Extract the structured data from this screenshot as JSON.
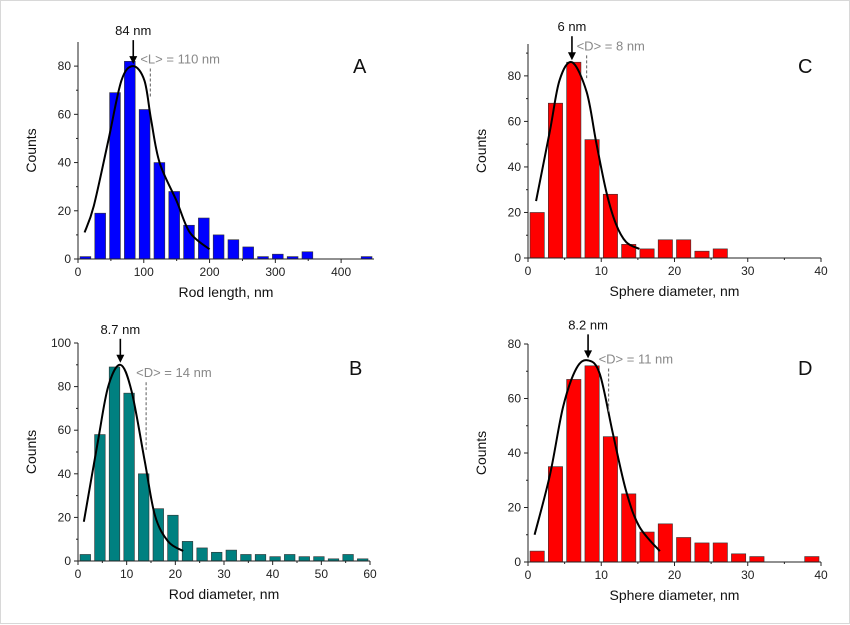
{
  "chart_data": [
    {
      "type": "bar",
      "panel": "A",
      "title": "",
      "xlabel": "Rod length, nm",
      "ylabel": "Counts",
      "xlim": [
        0,
        450
      ],
      "ylim": [
        0,
        90
      ],
      "xticks": [
        0,
        100,
        200,
        300,
        400
      ],
      "yticks": [
        0,
        20,
        40,
        60,
        80
      ],
      "grid": false,
      "bar_color": "#0000ff",
      "bin_width": 22.5,
      "x": [
        11.25,
        33.75,
        56.25,
        78.75,
        101.25,
        123.75,
        146.25,
        168.75,
        191.25,
        213.75,
        236.25,
        258.75,
        281.25,
        303.75,
        326.25,
        348.75,
        438.75
      ],
      "values": [
        1,
        19,
        69,
        82,
        62,
        40,
        28,
        14,
        17,
        10,
        8,
        5,
        1,
        2,
        1,
        3,
        1
      ],
      "fit": [
        [
          10,
          11
        ],
        [
          24,
          22
        ],
        [
          46,
          49
        ],
        [
          66,
          74
        ],
        [
          84,
          80
        ],
        [
          101,
          74
        ],
        [
          111,
          58
        ],
        [
          124,
          40
        ],
        [
          150,
          24
        ],
        [
          170,
          11
        ],
        [
          200,
          4
        ]
      ],
      "peak": {
        "label": "84 nm",
        "x": 84,
        "y": 80
      },
      "mean": {
        "label": "<L> = 110 nm",
        "x": 110,
        "y_top": 79,
        "y_bottom": 67
      },
      "panel_label": "A"
    },
    {
      "type": "bar",
      "panel": "B",
      "title": "",
      "xlabel": "Rod diameter, nm",
      "ylabel": "Counts",
      "xlim": [
        0,
        60
      ],
      "ylim": [
        0,
        100
      ],
      "xticks": [
        0,
        10,
        20,
        30,
        40,
        50,
        60
      ],
      "yticks": [
        0,
        20,
        40,
        60,
        80,
        100
      ],
      "grid": false,
      "bar_color": "#008080",
      "bin_width": 3,
      "x": [
        1.5,
        4.5,
        7.5,
        10.5,
        13.5,
        16.5,
        19.5,
        22.5,
        25.5,
        28.5,
        31.5,
        34.5,
        37.5,
        40.5,
        43.5,
        46.5,
        49.5,
        52.5,
        55.5,
        58.5
      ],
      "values": [
        3,
        58,
        89,
        77,
        40,
        24,
        21,
        9,
        6,
        4,
        5,
        3,
        3,
        2,
        3,
        2,
        2,
        1,
        3,
        1
      ],
      "fit": [
        [
          1.2,
          18
        ],
        [
          4.1,
          55
        ],
        [
          6.2,
          80
        ],
        [
          8.7,
          90
        ],
        [
          11,
          78
        ],
        [
          13.7,
          46
        ],
        [
          15.8,
          21
        ],
        [
          18.5,
          9
        ],
        [
          21.6,
          4.6
        ]
      ],
      "peak": {
        "label": "8.7 nm",
        "x": 8.7,
        "y": 90
      },
      "mean": {
        "label": "<D> = 14 nm",
        "x": 14,
        "y_top": 82,
        "y_bottom": 51
      },
      "panel_label": "B"
    },
    {
      "type": "bar",
      "panel": "C",
      "title": "",
      "xlabel": "Sphere diameter, nm",
      "ylabel": "Counts",
      "xlim": [
        0,
        40
      ],
      "ylim": [
        0,
        94
      ],
      "xticks": [
        0,
        10,
        20,
        30,
        40
      ],
      "yticks": [
        0,
        20,
        40,
        60,
        80
      ],
      "grid": false,
      "bar_color": "#ff0000",
      "bin_width": 2.5,
      "x": [
        1.25,
        3.75,
        6.25,
        8.75,
        11.25,
        13.75,
        16.25,
        18.75,
        21.25,
        23.75,
        26.25
      ],
      "values": [
        20,
        68,
        86,
        52,
        28,
        6,
        4,
        8,
        8,
        3,
        4
      ],
      "fit": [
        [
          1.1,
          25
        ],
        [
          3,
          56
        ],
        [
          4.3,
          78
        ],
        [
          6,
          86
        ],
        [
          8,
          73
        ],
        [
          9.3,
          51
        ],
        [
          10.7,
          29
        ],
        [
          12,
          15
        ],
        [
          13.4,
          7
        ],
        [
          15.2,
          4
        ]
      ],
      "peak": {
        "label": "6 nm",
        "x": 6,
        "y": 86
      },
      "mean": {
        "label": "<D> = 8 nm",
        "x": 8,
        "y_top": 89,
        "y_bottom": 79
      },
      "panel_label": "C"
    },
    {
      "type": "bar",
      "panel": "D",
      "title": "",
      "xlabel": "Sphere diameter, nm",
      "ylabel": "Counts",
      "xlim": [
        0,
        40
      ],
      "ylim": [
        0,
        80
      ],
      "xticks": [
        0,
        10,
        20,
        30,
        40
      ],
      "yticks": [
        0,
        20,
        40,
        60,
        80
      ],
      "grid": false,
      "bar_color": "#ff0000",
      "bin_width": 2.5,
      "x": [
        1.25,
        3.75,
        6.25,
        8.75,
        11.25,
        13.75,
        16.25,
        18.75,
        21.25,
        23.75,
        26.25,
        28.75,
        31.25,
        38.75
      ],
      "values": [
        4,
        35,
        67,
        72,
        46,
        25,
        11,
        14,
        9,
        7,
        7,
        3,
        2,
        2
      ],
      "fit": [
        [
          0.9,
          10
        ],
        [
          3,
          32
        ],
        [
          4.8,
          57
        ],
        [
          6.6,
          71
        ],
        [
          8.2,
          74
        ],
        [
          9.8,
          69
        ],
        [
          11.6,
          47
        ],
        [
          13.4,
          26
        ],
        [
          15.2,
          13
        ],
        [
          18,
          4
        ]
      ],
      "peak": {
        "label": "8.2 nm",
        "x": 8.2,
        "y": 74
      },
      "mean": {
        "label": "<D> = 11 nm",
        "x": 11,
        "y_top": 71,
        "y_bottom": 55
      },
      "panel_label": "D"
    }
  ]
}
